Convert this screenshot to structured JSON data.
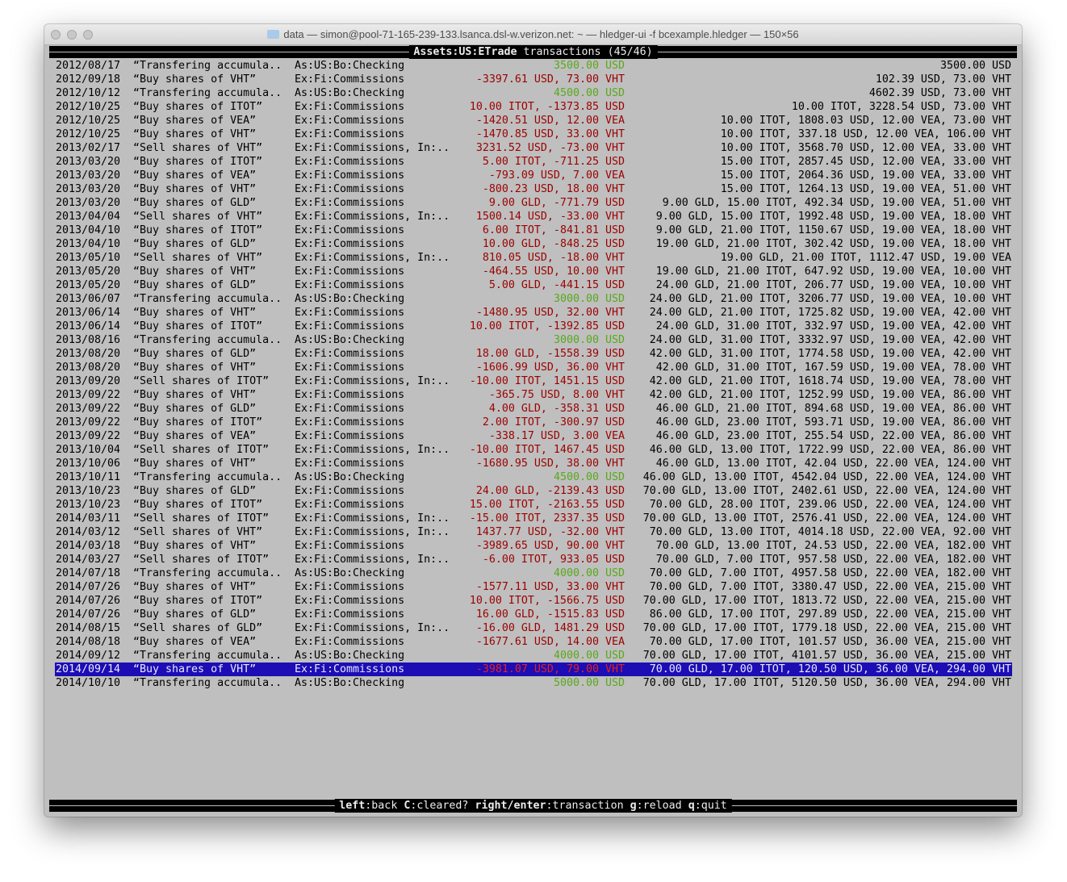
{
  "window": {
    "title": "data — simon@pool-71-165-239-133.lsanca.dsl-w.verizon.net: ~ — hledger-ui -f bcexample.hledger — 150×56"
  },
  "header": {
    "account": "Assets:US:ETrade",
    "label": "transactions",
    "count": "(45/46)"
  },
  "colors": {
    "background": "#bfbfbf",
    "negative_amount": "#9c0000",
    "deposit_amount": "#5aa81a",
    "selection": "#1c0db5"
  },
  "selected_index": 44,
  "rows": [
    {
      "date": "2012/08/17",
      "desc": "“Transfering accumula..",
      "account": "As:US:Bo:Checking",
      "amount": "3500.00 USD",
      "balance": "3500.00 USD",
      "deposit": true
    },
    {
      "date": "2012/09/18",
      "desc": "“Buy shares of VHT”",
      "account": "Ex:Fi:Commissions",
      "amount": "-3397.61 USD, 73.00 VHT",
      "balance": "102.39 USD, 73.00 VHT"
    },
    {
      "date": "2012/10/12",
      "desc": "“Transfering accumula..",
      "account": "As:US:Bo:Checking",
      "amount": "4500.00 USD",
      "balance": "4602.39 USD, 73.00 VHT",
      "deposit": true
    },
    {
      "date": "2012/10/25",
      "desc": "“Buy shares of ITOT”",
      "account": "Ex:Fi:Commissions",
      "amount": "10.00 ITOT, -1373.85 USD",
      "balance": "10.00 ITOT, 3228.54 USD, 73.00 VHT"
    },
    {
      "date": "2012/10/25",
      "desc": "“Buy shares of VEA”",
      "account": "Ex:Fi:Commissions",
      "amount": "-1420.51 USD, 12.00 VEA",
      "balance": "10.00 ITOT, 1808.03 USD, 12.00 VEA, 73.00 VHT"
    },
    {
      "date": "2012/10/25",
      "desc": "“Buy shares of VHT”",
      "account": "Ex:Fi:Commissions",
      "amount": "-1470.85 USD, 33.00 VHT",
      "balance": "10.00 ITOT, 337.18 USD, 12.00 VEA, 106.00 VHT"
    },
    {
      "date": "2013/02/17",
      "desc": "“Sell shares of VHT”",
      "account": "Ex:Fi:Commissions, In:..",
      "amount": "3231.52 USD, -73.00 VHT",
      "balance": "10.00 ITOT, 3568.70 USD, 12.00 VEA, 33.00 VHT"
    },
    {
      "date": "2013/03/20",
      "desc": "“Buy shares of ITOT”",
      "account": "Ex:Fi:Commissions",
      "amount": "5.00 ITOT, -711.25 USD",
      "balance": "15.00 ITOT, 2857.45 USD, 12.00 VEA, 33.00 VHT"
    },
    {
      "date": "2013/03/20",
      "desc": "“Buy shares of VEA”",
      "account": "Ex:Fi:Commissions",
      "amount": "-793.09 USD, 7.00 VEA",
      "balance": "15.00 ITOT, 2064.36 USD, 19.00 VEA, 33.00 VHT"
    },
    {
      "date": "2013/03/20",
      "desc": "“Buy shares of VHT”",
      "account": "Ex:Fi:Commissions",
      "amount": "-800.23 USD, 18.00 VHT",
      "balance": "15.00 ITOT, 1264.13 USD, 19.00 VEA, 51.00 VHT"
    },
    {
      "date": "2013/03/20",
      "desc": "“Buy shares of GLD”",
      "account": "Ex:Fi:Commissions",
      "amount": "9.00 GLD, -771.79 USD",
      "balance": "9.00 GLD, 15.00 ITOT, 492.34 USD, 19.00 VEA, 51.00 VHT"
    },
    {
      "date": "2013/04/04",
      "desc": "“Sell shares of VHT”",
      "account": "Ex:Fi:Commissions, In:..",
      "amount": "1500.14 USD, -33.00 VHT",
      "balance": "9.00 GLD, 15.00 ITOT, 1992.48 USD, 19.00 VEA, 18.00 VHT"
    },
    {
      "date": "2013/04/10",
      "desc": "“Buy shares of ITOT”",
      "account": "Ex:Fi:Commissions",
      "amount": "6.00 ITOT, -841.81 USD",
      "balance": "9.00 GLD, 21.00 ITOT, 1150.67 USD, 19.00 VEA, 18.00 VHT"
    },
    {
      "date": "2013/04/10",
      "desc": "“Buy shares of GLD”",
      "account": "Ex:Fi:Commissions",
      "amount": "10.00 GLD, -848.25 USD",
      "balance": "19.00 GLD, 21.00 ITOT, 302.42 USD, 19.00 VEA, 18.00 VHT"
    },
    {
      "date": "2013/05/10",
      "desc": "“Sell shares of VHT”",
      "account": "Ex:Fi:Commissions, In:..",
      "amount": "810.05 USD, -18.00 VHT",
      "balance": "19.00 GLD, 21.00 ITOT, 1112.47 USD, 19.00 VEA"
    },
    {
      "date": "2013/05/20",
      "desc": "“Buy shares of VHT”",
      "account": "Ex:Fi:Commissions",
      "amount": "-464.55 USD, 10.00 VHT",
      "balance": "19.00 GLD, 21.00 ITOT, 647.92 USD, 19.00 VEA, 10.00 VHT"
    },
    {
      "date": "2013/05/20",
      "desc": "“Buy shares of GLD”",
      "account": "Ex:Fi:Commissions",
      "amount": "5.00 GLD, -441.15 USD",
      "balance": "24.00 GLD, 21.00 ITOT, 206.77 USD, 19.00 VEA, 10.00 VHT"
    },
    {
      "date": "2013/06/07",
      "desc": "“Transfering accumula..",
      "account": "As:US:Bo:Checking",
      "amount": "3000.00 USD",
      "balance": "24.00 GLD, 21.00 ITOT, 3206.77 USD, 19.00 VEA, 10.00 VHT",
      "deposit": true
    },
    {
      "date": "2013/06/14",
      "desc": "“Buy shares of VHT”",
      "account": "Ex:Fi:Commissions",
      "amount": "-1480.95 USD, 32.00 VHT",
      "balance": "24.00 GLD, 21.00 ITOT, 1725.82 USD, 19.00 VEA, 42.00 VHT"
    },
    {
      "date": "2013/06/14",
      "desc": "“Buy shares of ITOT”",
      "account": "Ex:Fi:Commissions",
      "amount": "10.00 ITOT, -1392.85 USD",
      "balance": "24.00 GLD, 31.00 ITOT, 332.97 USD, 19.00 VEA, 42.00 VHT"
    },
    {
      "date": "2013/08/16",
      "desc": "“Transfering accumula..",
      "account": "As:US:Bo:Checking",
      "amount": "3000.00 USD",
      "balance": "24.00 GLD, 31.00 ITOT, 3332.97 USD, 19.00 VEA, 42.00 VHT",
      "deposit": true
    },
    {
      "date": "2013/08/20",
      "desc": "“Buy shares of GLD”",
      "account": "Ex:Fi:Commissions",
      "amount": "18.00 GLD, -1558.39 USD",
      "balance": "42.00 GLD, 31.00 ITOT, 1774.58 USD, 19.00 VEA, 42.00 VHT"
    },
    {
      "date": "2013/08/20",
      "desc": "“Buy shares of VHT”",
      "account": "Ex:Fi:Commissions",
      "amount": "-1606.99 USD, 36.00 VHT",
      "balance": "42.00 GLD, 31.00 ITOT, 167.59 USD, 19.00 VEA, 78.00 VHT"
    },
    {
      "date": "2013/09/20",
      "desc": "“Sell shares of ITOT”",
      "account": "Ex:Fi:Commissions, In:..",
      "amount": "-10.00 ITOT, 1451.15 USD",
      "balance": "42.00 GLD, 21.00 ITOT, 1618.74 USD, 19.00 VEA, 78.00 VHT"
    },
    {
      "date": "2013/09/22",
      "desc": "“Buy shares of VHT”",
      "account": "Ex:Fi:Commissions",
      "amount": "-365.75 USD, 8.00 VHT",
      "balance": "42.00 GLD, 21.00 ITOT, 1252.99 USD, 19.00 VEA, 86.00 VHT"
    },
    {
      "date": "2013/09/22",
      "desc": "“Buy shares of GLD”",
      "account": "Ex:Fi:Commissions",
      "amount": "4.00 GLD, -358.31 USD",
      "balance": "46.00 GLD, 21.00 ITOT, 894.68 USD, 19.00 VEA, 86.00 VHT"
    },
    {
      "date": "2013/09/22",
      "desc": "“Buy shares of ITOT”",
      "account": "Ex:Fi:Commissions",
      "amount": "2.00 ITOT, -300.97 USD",
      "balance": "46.00 GLD, 23.00 ITOT, 593.71 USD, 19.00 VEA, 86.00 VHT"
    },
    {
      "date": "2013/09/22",
      "desc": "“Buy shares of VEA”",
      "account": "Ex:Fi:Commissions",
      "amount": "-338.17 USD, 3.00 VEA",
      "balance": "46.00 GLD, 23.00 ITOT, 255.54 USD, 22.00 VEA, 86.00 VHT"
    },
    {
      "date": "2013/10/04",
      "desc": "“Sell shares of ITOT”",
      "account": "Ex:Fi:Commissions, In:..",
      "amount": "-10.00 ITOT, 1467.45 USD",
      "balance": "46.00 GLD, 13.00 ITOT, 1722.99 USD, 22.00 VEA, 86.00 VHT"
    },
    {
      "date": "2013/10/06",
      "desc": "“Buy shares of VHT”",
      "account": "Ex:Fi:Commissions",
      "amount": "-1680.95 USD, 38.00 VHT",
      "balance": "46.00 GLD, 13.00 ITOT, 42.04 USD, 22.00 VEA, 124.00 VHT"
    },
    {
      "date": "2013/10/11",
      "desc": "“Transfering accumula..",
      "account": "As:US:Bo:Checking",
      "amount": "4500.00 USD",
      "balance": "46.00 GLD, 13.00 ITOT, 4542.04 USD, 22.00 VEA, 124.00 VHT",
      "deposit": true
    },
    {
      "date": "2013/10/23",
      "desc": "“Buy shares of GLD”",
      "account": "Ex:Fi:Commissions",
      "amount": "24.00 GLD, -2139.43 USD",
      "balance": "70.00 GLD, 13.00 ITOT, 2402.61 USD, 22.00 VEA, 124.00 VHT"
    },
    {
      "date": "2013/10/23",
      "desc": "“Buy shares of ITOT”",
      "account": "Ex:Fi:Commissions",
      "amount": "15.00 ITOT, -2163.55 USD",
      "balance": "70.00 GLD, 28.00 ITOT, 239.06 USD, 22.00 VEA, 124.00 VHT"
    },
    {
      "date": "2014/03/11",
      "desc": "“Sell shares of ITOT”",
      "account": "Ex:Fi:Commissions, In:..",
      "amount": "-15.00 ITOT, 2337.35 USD",
      "balance": "70.00 GLD, 13.00 ITOT, 2576.41 USD, 22.00 VEA, 124.00 VHT"
    },
    {
      "date": "2014/03/12",
      "desc": "“Sell shares of VHT”",
      "account": "Ex:Fi:Commissions, In:..",
      "amount": "1437.77 USD, -32.00 VHT",
      "balance": "70.00 GLD, 13.00 ITOT, 4014.18 USD, 22.00 VEA, 92.00 VHT"
    },
    {
      "date": "2014/03/18",
      "desc": "“Buy shares of VHT”",
      "account": "Ex:Fi:Commissions",
      "amount": "-3989.65 USD, 90.00 VHT",
      "balance": "70.00 GLD, 13.00 ITOT, 24.53 USD, 22.00 VEA, 182.00 VHT"
    },
    {
      "date": "2014/03/27",
      "desc": "“Sell shares of ITOT”",
      "account": "Ex:Fi:Commissions, In:..",
      "amount": "-6.00 ITOT, 933.05 USD",
      "balance": "70.00 GLD, 7.00 ITOT, 957.58 USD, 22.00 VEA, 182.00 VHT"
    },
    {
      "date": "2014/07/18",
      "desc": "“Transfering accumula..",
      "account": "As:US:Bo:Checking",
      "amount": "4000.00 USD",
      "balance": "70.00 GLD, 7.00 ITOT, 4957.58 USD, 22.00 VEA, 182.00 VHT",
      "deposit": true
    },
    {
      "date": "2014/07/26",
      "desc": "“Buy shares of VHT”",
      "account": "Ex:Fi:Commissions",
      "amount": "-1577.11 USD, 33.00 VHT",
      "balance": "70.00 GLD, 7.00 ITOT, 3380.47 USD, 22.00 VEA, 215.00 VHT"
    },
    {
      "date": "2014/07/26",
      "desc": "“Buy shares of ITOT”",
      "account": "Ex:Fi:Commissions",
      "amount": "10.00 ITOT, -1566.75 USD",
      "balance": "70.00 GLD, 17.00 ITOT, 1813.72 USD, 22.00 VEA, 215.00 VHT"
    },
    {
      "date": "2014/07/26",
      "desc": "“Buy shares of GLD”",
      "account": "Ex:Fi:Commissions",
      "amount": "16.00 GLD, -1515.83 USD",
      "balance": "86.00 GLD, 17.00 ITOT, 297.89 USD, 22.00 VEA, 215.00 VHT"
    },
    {
      "date": "2014/08/15",
      "desc": "“Sell shares of GLD”",
      "account": "Ex:Fi:Commissions, In:..",
      "amount": "-16.00 GLD, 1481.29 USD",
      "balance": "70.00 GLD, 17.00 ITOT, 1779.18 USD, 22.00 VEA, 215.00 VHT"
    },
    {
      "date": "2014/08/18",
      "desc": "“Buy shares of VEA”",
      "account": "Ex:Fi:Commissions",
      "amount": "-1677.61 USD, 14.00 VEA",
      "balance": "70.00 GLD, 17.00 ITOT, 101.57 USD, 36.00 VEA, 215.00 VHT"
    },
    {
      "date": "2014/09/12",
      "desc": "“Transfering accumula..",
      "account": "As:US:Bo:Checking",
      "amount": "4000.00 USD",
      "balance": "70.00 GLD, 17.00 ITOT, 4101.57 USD, 36.00 VEA, 215.00 VHT",
      "deposit": true
    },
    {
      "date": "2014/09/14",
      "desc": "“Buy shares of VHT”",
      "account": "Ex:Fi:Commissions",
      "amount": "-3981.07 USD, 79.00 VHT",
      "balance": "70.00 GLD, 17.00 ITOT, 120.50 USD, 36.00 VEA, 294.00 VHT"
    },
    {
      "date": "2014/10/10",
      "desc": "“Transfering accumula..",
      "account": "As:US:Bo:Checking",
      "amount": "5000.00 USD",
      "balance": "70.00 GLD, 17.00 ITOT, 5120.50 USD, 36.00 VEA, 294.00 VHT",
      "deposit": true
    }
  ],
  "footer": [
    {
      "key": "left",
      "action": "back"
    },
    {
      "key": "C",
      "action": "cleared?"
    },
    {
      "key": "right/enter",
      "action": "transaction"
    },
    {
      "key": "g",
      "action": "reload"
    },
    {
      "key": "q",
      "action": "quit"
    }
  ]
}
